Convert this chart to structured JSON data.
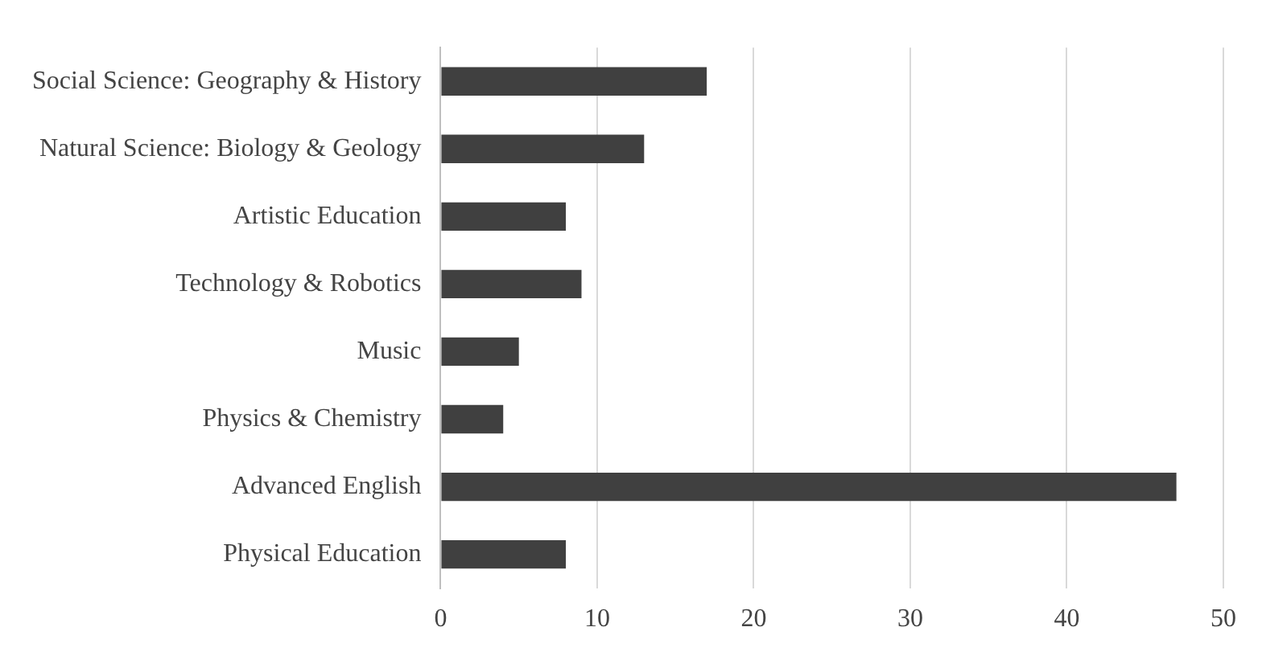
{
  "chart_data": {
    "type": "bar",
    "orientation": "horizontal",
    "categories": [
      "Social Science: Geography & History",
      "Natural Science: Biology & Geology",
      "Artistic Education",
      "Technology & Robotics",
      "Music",
      "Physics & Chemistry",
      "Advanced English",
      "Physical Education"
    ],
    "values": [
      17,
      13,
      8,
      9,
      5,
      4,
      47,
      8
    ],
    "color": "#404040",
    "xlim": [
      0,
      50
    ],
    "xticks": [
      0,
      10,
      20,
      30,
      40,
      50
    ],
    "grid": "x"
  }
}
